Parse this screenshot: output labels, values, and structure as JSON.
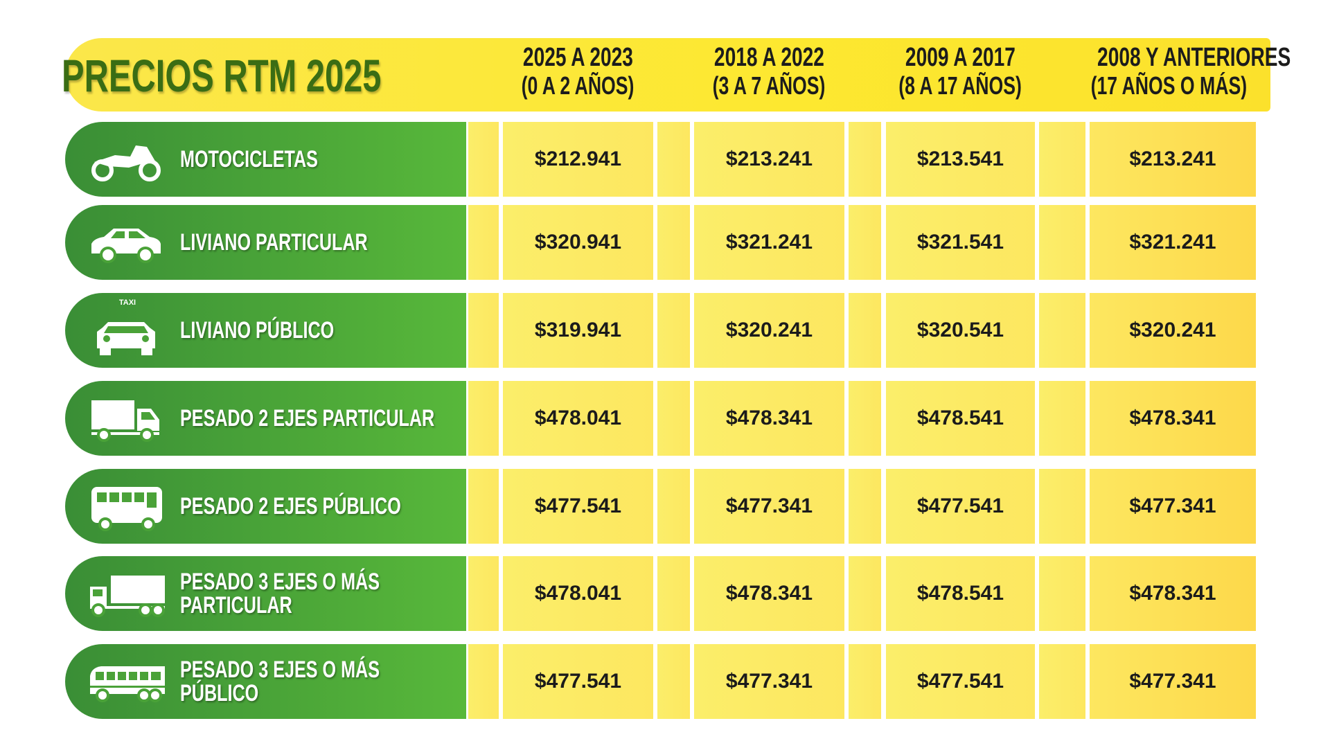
{
  "header": {
    "title": "PRECIOS RTM 2025",
    "columns": [
      {
        "years": "2025 A 2023",
        "ages": "(0 A 2 AÑOS)"
      },
      {
        "years": "2018 A 2022",
        "ages": "(3 A 7 AÑOS)"
      },
      {
        "years": "2009 A 2017",
        "ages": "(8 A 17 AÑOS)"
      },
      {
        "years": "2008 Y ANTERIORES",
        "ages": "(17 AÑOS O MÁS)"
      }
    ]
  },
  "rows": [
    {
      "label": [
        "MOTOCICLETAS"
      ],
      "prices": [
        "$212.941",
        "$213.241",
        "$213.541",
        "$213.241"
      ]
    },
    {
      "label": [
        "LIVIANO PARTICULAR"
      ],
      "prices": [
        "$320.941",
        "$321.241",
        "$321.541",
        "$321.241"
      ]
    },
    {
      "label": [
        "LIVIANO PÚBLICO"
      ],
      "sign": "TAXI",
      "prices": [
        "$319.941",
        "$320.241",
        "$320.541",
        "$320.241"
      ]
    },
    {
      "label": [
        "PESADO 2 EJES PARTICULAR"
      ],
      "prices": [
        "$478.041",
        "$478.341",
        "$478.541",
        "$478.341"
      ]
    },
    {
      "label": [
        "PESADO 2 EJES PÚBLICO"
      ],
      "prices": [
        "$477.541",
        "$477.341",
        "$477.541",
        "$477.341"
      ]
    },
    {
      "label": [
        "PESADO 3 EJES O MÁS",
        "PARTICULAR"
      ],
      "prices": [
        "$478.041",
        "$478.341",
        "$478.541",
        "$478.341"
      ]
    },
    {
      "label": [
        "PESADO 3 EJES O MÁS",
        "PÚBLICO"
      ],
      "prices": [
        "$477.541",
        "$477.341",
        "$477.541",
        "$477.341"
      ]
    }
  ]
}
